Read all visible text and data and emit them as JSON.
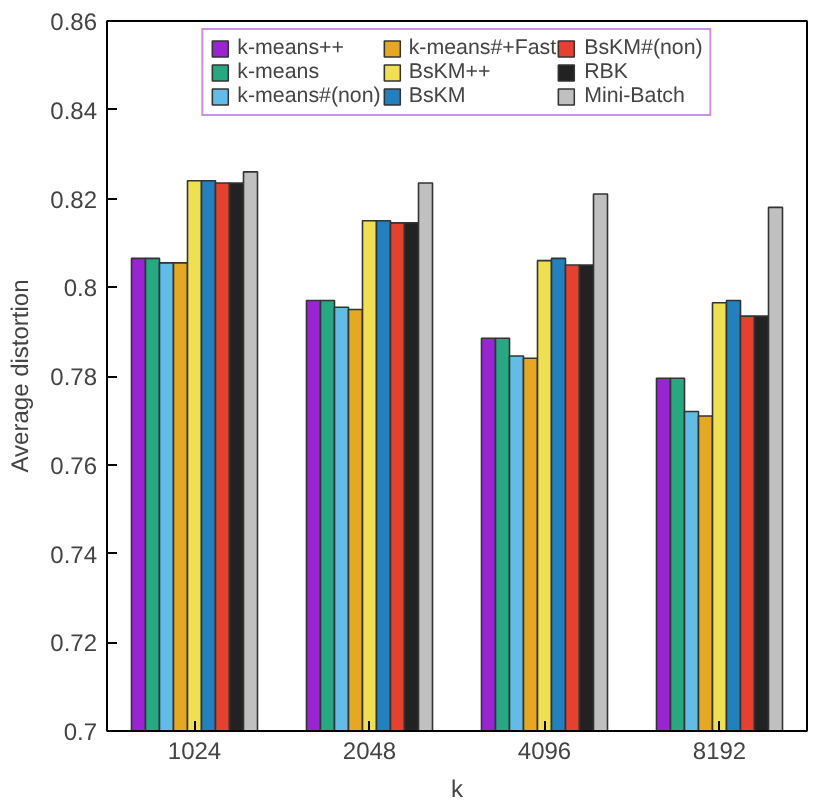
{
  "chart_data": {
    "type": "bar",
    "xlabel": "k",
    "ylabel": "Average distortion",
    "categories": [
      "1024",
      "2048",
      "4096",
      "8192"
    ],
    "ylim": [
      0.7,
      0.86
    ],
    "yticks": [
      0.7,
      0.72,
      0.74,
      0.76,
      0.78,
      0.8,
      0.82,
      0.84,
      0.86
    ],
    "grid": false,
    "legend": "top",
    "series": [
      {
        "name": "k-means++",
        "color": "#9a24d4",
        "values": [
          0.8065,
          0.797,
          0.7885,
          0.7795
        ]
      },
      {
        "name": "k-means",
        "color": "#26a880",
        "values": [
          0.8065,
          0.797,
          0.7885,
          0.7795
        ]
      },
      {
        "name": "k-means#(non)",
        "color": "#62bce8",
        "values": [
          0.8055,
          0.7955,
          0.7845,
          0.772
        ]
      },
      {
        "name": "k-means#+Fast",
        "color": "#e6a820",
        "values": [
          0.8055,
          0.795,
          0.784,
          0.771
        ]
      },
      {
        "name": "BsKM++",
        "color": "#f0e050",
        "values": [
          0.824,
          0.815,
          0.806,
          0.7965
        ]
      },
      {
        "name": "BsKM",
        "color": "#2080c0",
        "values": [
          0.824,
          0.815,
          0.8065,
          0.797
        ]
      },
      {
        "name": "BsKM#(non)",
        "color": "#e8402f",
        "values": [
          0.8235,
          0.8145,
          0.805,
          0.7935
        ]
      },
      {
        "name": "RBK",
        "color": "#222222",
        "values": [
          0.8235,
          0.8145,
          0.805,
          0.7935
        ]
      },
      {
        "name": "Mini-Batch",
        "color": "#c0c0c0",
        "values": [
          0.826,
          0.8235,
          0.821,
          0.818
        ]
      }
    ]
  }
}
